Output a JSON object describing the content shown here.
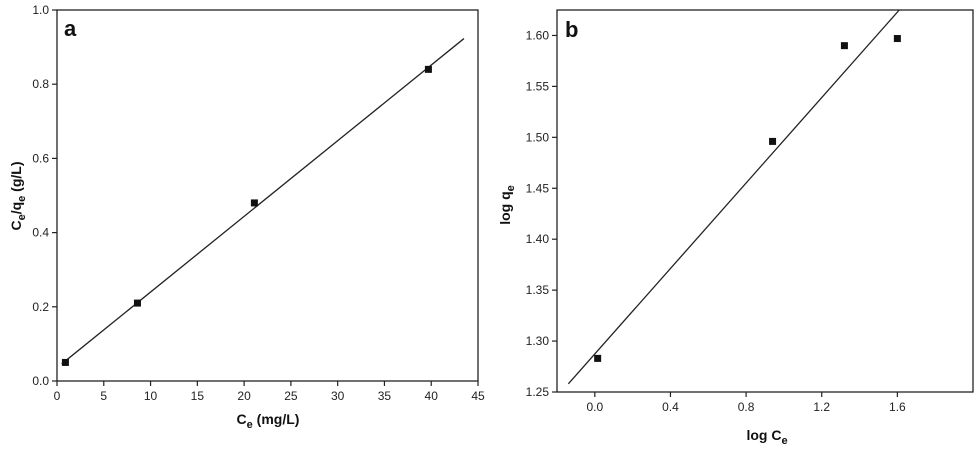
{
  "chart_data": [
    {
      "type": "scatter",
      "panel_label": "a",
      "xlabel": {
        "main": "C",
        "sub": "e",
        "unit": " (mg/L)"
      },
      "ylabel": {
        "p1": "C",
        "s1": "e",
        "p2": "/q",
        "s2": "e",
        "p3": " (g/L)"
      },
      "xlim": [
        0,
        45
      ],
      "ylim": [
        0.0,
        1.0
      ],
      "xticks": [
        "0",
        "5",
        "10",
        "15",
        "20",
        "25",
        "30",
        "35",
        "40",
        "45"
      ],
      "yticks": [
        "0.0",
        "0.2",
        "0.4",
        "0.6",
        "0.8",
        "1.0"
      ],
      "points": {
        "x": [
          0.9,
          8.6,
          21.1,
          39.7
        ],
        "y": [
          0.05,
          0.21,
          0.48,
          0.84
        ]
      },
      "fit_line": {
        "x": [
          0.5,
          43.5
        ],
        "y": [
          0.046,
          0.923
        ]
      },
      "grid": false
    },
    {
      "type": "scatter",
      "panel_label": "b",
      "xlabel": {
        "main": "log C",
        "sub": "e"
      },
      "ylabel": {
        "main": "log q",
        "sub": "e"
      },
      "xlim": [
        -0.2,
        2.0
      ],
      "ylim": [
        1.25,
        1.625
      ],
      "xticks": [
        "0.0",
        "0.4",
        "0.8",
        "1.2",
        "1.6"
      ],
      "yticks": [
        "1.25",
        "1.30",
        "1.35",
        "1.40",
        "1.45",
        "1.50",
        "1.55",
        "1.60"
      ],
      "points": {
        "x": [
          0.015,
          0.94,
          1.32,
          1.6
        ],
        "y": [
          1.283,
          1.496,
          1.59,
          1.597
        ]
      },
      "fit_line": {
        "x": [
          -0.14,
          1.61
        ],
        "y": [
          1.258,
          1.625
        ]
      },
      "grid": false
    }
  ]
}
